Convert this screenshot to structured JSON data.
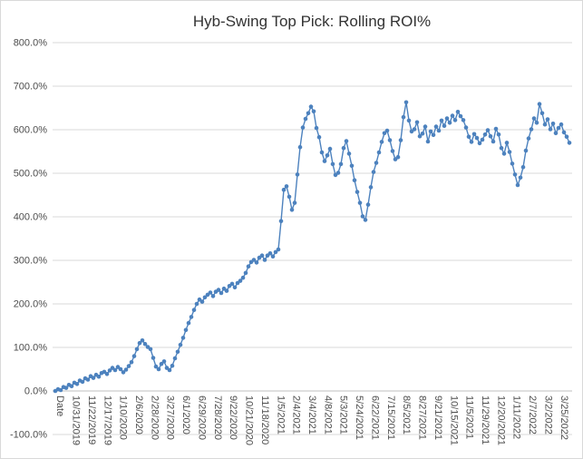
{
  "window": {
    "background": "#ffffff",
    "border_color": "#d9d9d9"
  },
  "chart_data": {
    "type": "scatter",
    "title": "Hyb-Swing Top Pick: Rolling ROI%",
    "xlabel": "",
    "ylabel": "",
    "legend": "none",
    "grid": true,
    "ylim": [
      -100,
      800
    ],
    "y_tick_step": 100,
    "y_tick_labels": [
      "800.0%",
      "700.0%",
      "600.0%",
      "500.0%",
      "400.0%",
      "300.0%",
      "200.0%",
      "100.0%",
      "0.0%",
      "-100.0%"
    ],
    "x_tick_labels": [
      "Date",
      "10/31/2019",
      "11/22/2019",
      "12/17/2019",
      "1/10/2020",
      "2/6/2020",
      "2/28/2020",
      "3/27/2020",
      "6/1/2020",
      "6/29/2020",
      "7/28/2020",
      "9/22/2020",
      "10/21/2020",
      "11/18/2020",
      "1/5/2021",
      "2/4/2021",
      "3/4/2021",
      "4/8/2021",
      "5/3/2021",
      "5/24/2021",
      "6/22/2021",
      "7/15/2021",
      "8/5/2021",
      "8/27/2021",
      "9/21/2021",
      "10/15/2021",
      "11/5/2021",
      "11/29/2021",
      "12/20/2021",
      "1/11/2022",
      "2/7/2022",
      "3/2/2022",
      "3/25/2022"
    ],
    "marker_color": "#4D82BE",
    "gridline_color": "#d9d9d9",
    "axis_line_color": "#bfbfbf",
    "tick_text_color": "#4d4d4d",
    "title_color": "#333333",
    "series": [
      {
        "name": "Rolling ROI%",
        "unit": "%",
        "values": [
          0,
          4,
          2,
          9,
          7,
          14,
          11,
          19,
          16,
          24,
          21,
          29,
          26,
          34,
          30,
          37,
          33,
          41,
          44,
          39,
          47,
          53,
          48,
          55,
          50,
          43,
          49,
          57,
          66,
          80,
          96,
          110,
          116,
          108,
          101,
          96,
          76,
          56,
          50,
          62,
          68,
          53,
          48,
          58,
          75,
          90,
          106,
          122,
          140,
          156,
          170,
          186,
          200,
          210,
          205,
          215,
          221,
          226,
          218,
          228,
          232,
          225,
          235,
          230,
          241,
          246,
          238,
          248,
          253,
          260,
          271,
          286,
          296,
          301,
          295,
          306,
          311,
          301,
          311,
          316,
          309,
          319,
          325,
          390,
          462,
          470,
          446,
          416,
          432,
          497,
          560,
          605,
          625,
          638,
          653,
          642,
          604,
          583,
          548,
          528,
          541,
          556,
          521,
          496,
          501,
          521,
          558,
          574,
          545,
          517,
          484,
          457,
          432,
          401,
          393,
          428,
          468,
          503,
          524,
          548,
          572,
          592,
          598,
          576,
          551,
          532,
          537,
          576,
          629,
          663,
          621,
          596,
          601,
          617,
          585,
          591,
          607,
          573,
          596,
          588,
          607,
          598,
          621,
          609,
          626,
          616,
          632,
          622,
          641,
          631,
          622,
          605,
          584,
          572,
          590,
          581,
          569,
          577,
          589,
          599,
          585,
          573,
          602,
          589,
          558,
          545,
          570,
          549,
          522,
          497,
          473,
          490,
          514,
          552,
          580,
          601,
          626,
          616,
          659,
          638,
          612,
          624,
          601,
          614,
          592,
          604,
          612,
          594,
          584,
          570
        ]
      }
    ]
  }
}
